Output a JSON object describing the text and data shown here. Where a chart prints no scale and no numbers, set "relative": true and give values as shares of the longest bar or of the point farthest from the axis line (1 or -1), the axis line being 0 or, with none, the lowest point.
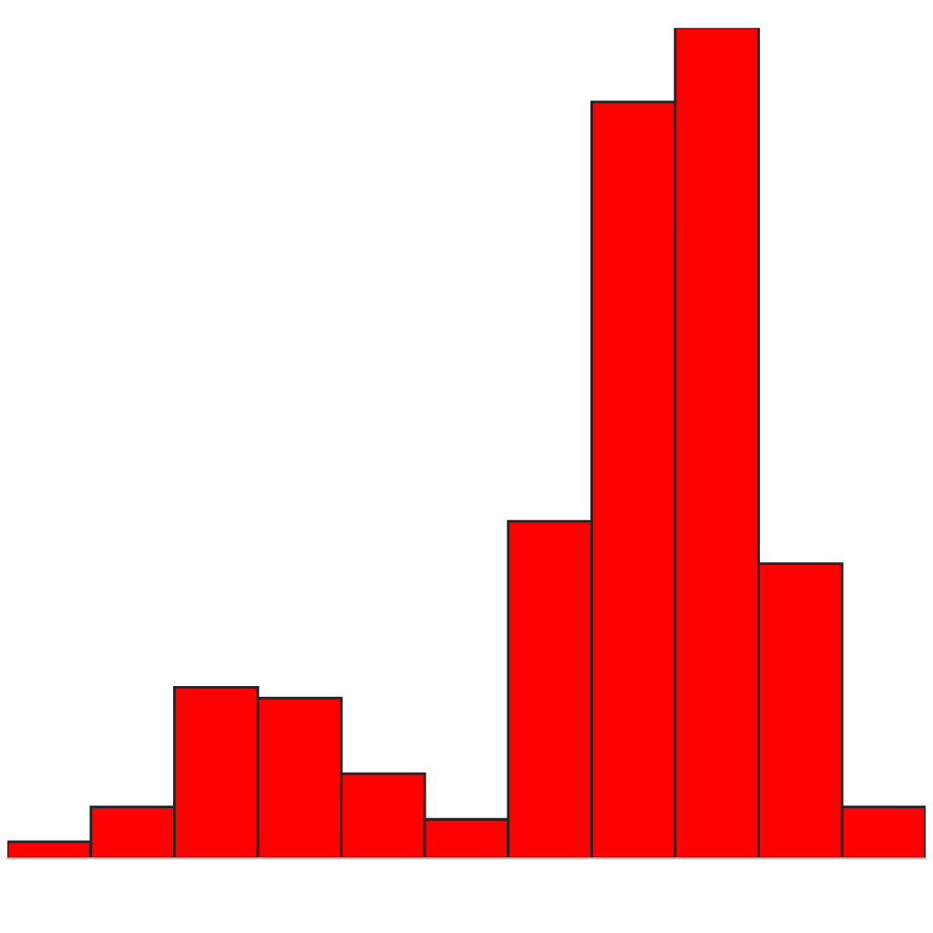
{
  "chart_data": {
    "type": "bar",
    "relative": true,
    "categories": [
      null,
      null,
      null,
      null,
      null,
      null,
      null,
      null,
      null,
      null,
      null
    ],
    "values": [
      0.02,
      0.062,
      0.206,
      0.193,
      0.102,
      0.047,
      0.406,
      0.911,
      1,
      0.355,
      0.062
    ],
    "color": "#ff0000"
  }
}
